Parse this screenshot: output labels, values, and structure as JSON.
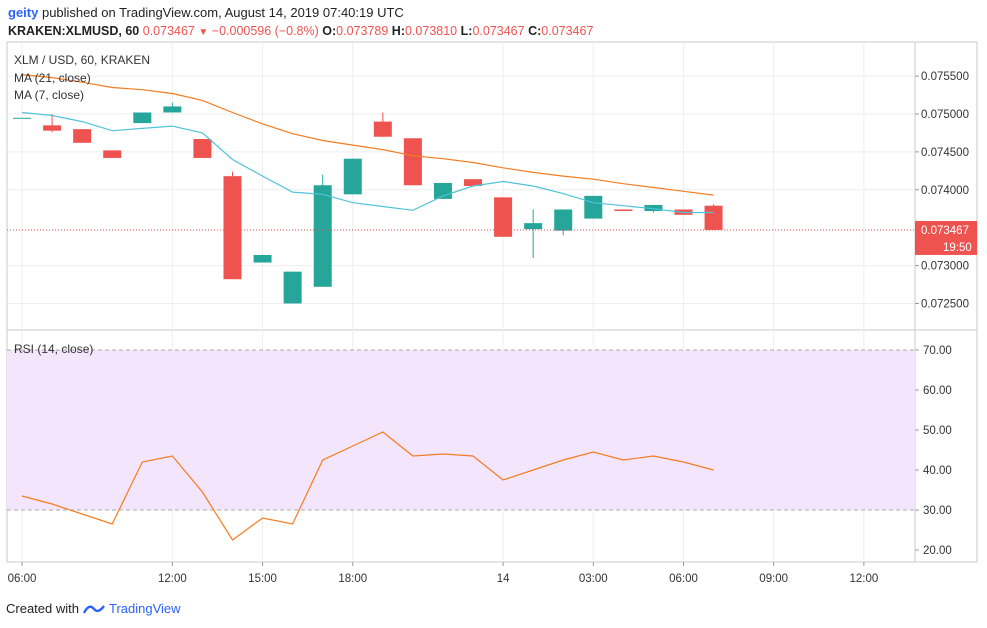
{
  "header": {
    "user": "geity",
    "published": "published on TradingView.com, August 14, 2019 07:40:19 UTC"
  },
  "ohlc": {
    "symbol": "KRAKEN:XLMUSD, 60",
    "last": "0.073467",
    "change": "−0.000596 (−0.8%)",
    "o_label": "O:",
    "o": "0.073789",
    "h_label": "H:",
    "h": "0.073810",
    "l_label": "L:",
    "l": "0.073467",
    "c_label": "C:",
    "c": "0.073467"
  },
  "legends": {
    "title": "XLM / USD, 60, KRAKEN",
    "ma21": "MA (21, close)",
    "ma7": "MA (7, close)",
    "rsi": "RSI (14, close)"
  },
  "price_tag": {
    "value": "0.073467",
    "countdown": "19:50"
  },
  "footer": {
    "created": "Created with",
    "brand": "TradingView"
  },
  "colors": {
    "up": "#26a69a",
    "down": "#ef5350",
    "ma21": "#f57c20",
    "ma7": "#4fc3d9",
    "rsi": "#f57c20",
    "rsi_band": "#f3e5fc"
  },
  "chart_data": {
    "type": "candlestick",
    "price_axis": {
      "ylim": [
        0.07215,
        0.07595
      ],
      "ticks": [
        "0.075500",
        "0.075000",
        "0.074500",
        "0.074000",
        "0.073000",
        "0.072500"
      ]
    },
    "x_ticks": [
      "06:00",
      "12:00",
      "15:00",
      "18:00",
      "14",
      "03:00",
      "06:00",
      "09:00",
      "12:00"
    ],
    "x_tick_index": [
      0,
      5,
      8,
      11,
      16,
      19,
      22,
      25,
      28
    ],
    "x_range": [
      -0.5,
      29.7
    ],
    "candles": [
      {
        "i": 0,
        "o": 0.07495,
        "h": 0.07495,
        "l": 0.07495,
        "c": 0.07495
      },
      {
        "i": 1,
        "o": 0.07485,
        "h": 0.075,
        "l": 0.07476,
        "c": 0.07478
      },
      {
        "i": 2,
        "o": 0.0748,
        "h": 0.0748,
        "l": 0.07462,
        "c": 0.07462
      },
      {
        "i": 3,
        "o": 0.07452,
        "h": 0.07452,
        "l": 0.07442,
        "c": 0.07442
      },
      {
        "i": 4,
        "o": 0.07488,
        "h": 0.07502,
        "l": 0.07488,
        "c": 0.07502
      },
      {
        "i": 5,
        "o": 0.07502,
        "h": 0.07515,
        "l": 0.07502,
        "c": 0.0751
      },
      {
        "i": 6,
        "o": 0.07467,
        "h": 0.07467,
        "l": 0.07442,
        "c": 0.07442
      },
      {
        "i": 7,
        "o": 0.07418,
        "h": 0.07424,
        "l": 0.07282,
        "c": 0.07282
      },
      {
        "i": 8,
        "o": 0.07304,
        "h": 0.07314,
        "l": 0.07304,
        "c": 0.07314
      },
      {
        "i": 9,
        "o": 0.0725,
        "h": 0.07292,
        "l": 0.0725,
        "c": 0.07292
      },
      {
        "i": 10,
        "o": 0.07272,
        "h": 0.0742,
        "l": 0.07272,
        "c": 0.07406
      },
      {
        "i": 11,
        "o": 0.07394,
        "h": 0.07441,
        "l": 0.07394,
        "c": 0.07441
      },
      {
        "i": 12,
        "o": 0.0749,
        "h": 0.07502,
        "l": 0.0747,
        "c": 0.0747
      },
      {
        "i": 13,
        "o": 0.07468,
        "h": 0.07468,
        "l": 0.07406,
        "c": 0.07406
      },
      {
        "i": 14,
        "o": 0.07388,
        "h": 0.07409,
        "l": 0.07388,
        "c": 0.07409
      },
      {
        "i": 15,
        "o": 0.07414,
        "h": 0.07414,
        "l": 0.07405,
        "c": 0.07405
      },
      {
        "i": 16,
        "o": 0.0739,
        "h": 0.0739,
        "l": 0.07338,
        "c": 0.07338
      },
      {
        "i": 17,
        "o": 0.07348,
        "h": 0.07374,
        "l": 0.0731,
        "c": 0.07356
      },
      {
        "i": 18,
        "o": 0.07346,
        "h": 0.07374,
        "l": 0.0734,
        "c": 0.07374
      },
      {
        "i": 19,
        "o": 0.07362,
        "h": 0.07392,
        "l": 0.07362,
        "c": 0.07392
      },
      {
        "i": 20,
        "o": 0.07374,
        "h": 0.07374,
        "l": 0.07372,
        "c": 0.07372
      },
      {
        "i": 21,
        "o": 0.07372,
        "h": 0.0738,
        "l": 0.0737,
        "c": 0.0738
      },
      {
        "i": 22,
        "o": 0.07374,
        "h": 0.07374,
        "l": 0.07367,
        "c": 0.07367
      },
      {
        "i": 23,
        "o": 0.07379,
        "h": 0.07381,
        "l": 0.07347,
        "c": 0.07347
      }
    ],
    "ma21": [
      0.07552,
      0.07548,
      0.07542,
      0.07535,
      0.07532,
      0.07527,
      0.07518,
      0.07502,
      0.07487,
      0.07474,
      0.07465,
      0.07459,
      0.07453,
      0.07445,
      0.07441,
      0.07436,
      0.07429,
      0.07423,
      0.07418,
      0.07414,
      0.07408,
      0.07403,
      0.07398,
      0.07393
    ],
    "ma7": [
      0.07502,
      0.07498,
      0.0749,
      0.07478,
      0.07481,
      0.07484,
      0.07475,
      0.0744,
      0.07418,
      0.07397,
      0.07394,
      0.07383,
      0.07378,
      0.07373,
      0.07392,
      0.07405,
      0.07411,
      0.07405,
      0.07395,
      0.07383,
      0.07379,
      0.07375,
      0.0737,
      0.0737
    ],
    "rsi": {
      "ylim": [
        17,
        75
      ],
      "ticks": [
        "70.00",
        "60.00",
        "50.00",
        "40.00",
        "30.00",
        "20.00"
      ],
      "band": [
        30,
        70
      ],
      "values": [
        33.5,
        31.5,
        29.0,
        26.5,
        42.0,
        43.5,
        34.5,
        22.5,
        28.0,
        26.5,
        42.5,
        46.0,
        49.5,
        43.5,
        44.0,
        43.5,
        37.5,
        40.0,
        42.5,
        44.5,
        42.5,
        43.5,
        42.0,
        40.0
      ]
    }
  }
}
